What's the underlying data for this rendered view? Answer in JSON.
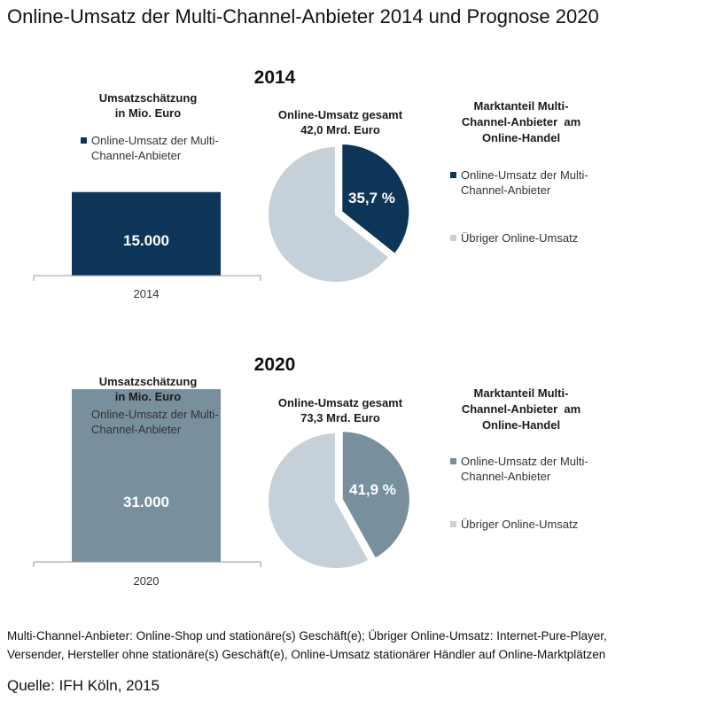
{
  "title": "Online-Umsatz der Multi-Channel-Anbieter 2014 und Prognose 2020",
  "colors": {
    "mc2014": "#0d3558",
    "mc2020": "#788f9e",
    "rest": "#c5d0d8",
    "axis": "#9a9a9a"
  },
  "chart_data": [
    {
      "type": "bar",
      "year": "2014",
      "title_line1": "Umsatzschätzung",
      "title_line2": "in Mio. Euro",
      "legend_line1": "Online-Umsatz der Multi-",
      "legend_line2": "Channel-Anbieter",
      "categories": [
        "2014"
      ],
      "values": [
        15000
      ],
      "value_labels": [
        "15.000"
      ],
      "ylim": [
        0,
        35000
      ]
    },
    {
      "type": "pie",
      "year": "2014",
      "title_line1": "Online-Umsatz gesamt",
      "title_line2": "42,0 Mrd. Euro",
      "slices": [
        {
          "name": "Online-Umsatz der Multi-Channel-Anbieter",
          "value": 35.7,
          "label": "35,7 %"
        },
        {
          "name": "Übriger Online-Umsatz",
          "value": 64.3
        }
      ],
      "share_title_line1": "Marktanteil Multi-",
      "share_title_line2": "Channel-Anbieter  am",
      "share_title_line3": "Online-Handel",
      "legend_mc_line1": "Online-Umsatz der Multi-",
      "legend_mc_line2": "Channel-Anbieter",
      "legend_rest": "Übriger Online-Umsatz"
    },
    {
      "type": "bar",
      "year": "2020",
      "title_line1": "Umsatzschätzung",
      "title_line2": "in Mio. Euro",
      "legend_line1": "Online-Umsatz der Multi-",
      "legend_line2": "Channel-Anbieter",
      "categories": [
        "2020"
      ],
      "values": [
        31000
      ],
      "value_labels": [
        "31.000"
      ],
      "ylim": [
        0,
        35000
      ]
    },
    {
      "type": "pie",
      "year": "2020",
      "title_line1": "Online-Umsatz gesamt",
      "title_line2": "73,3 Mrd. Euro",
      "slices": [
        {
          "name": "Online-Umsatz der Multi-Channel-Anbieter",
          "value": 41.9,
          "label": "41,9 %"
        },
        {
          "name": "Übriger Online-Umsatz",
          "value": 58.1
        }
      ],
      "share_title_line1": "Marktanteil Multi-",
      "share_title_line2": "Channel-Anbieter  am",
      "share_title_line3": "Online-Handel",
      "legend_mc_line1": "Online-Umsatz der Multi-",
      "legend_mc_line2": "Channel-Anbieter",
      "legend_rest": "Übriger Online-Umsatz"
    }
  ],
  "footnote_line1": "Multi-Channel-Anbieter: Online-Shop und stationäre(s) Geschäft(e); Übriger Online-Umsatz: Internet-Pure-Player,",
  "footnote_line2": "Versender, Hersteller ohne stationäre(s) Geschäft(e), Online-Umsatz stationärer Händler auf Online-Marktplätzen",
  "source": "Quelle: IFH Köln, 2015"
}
